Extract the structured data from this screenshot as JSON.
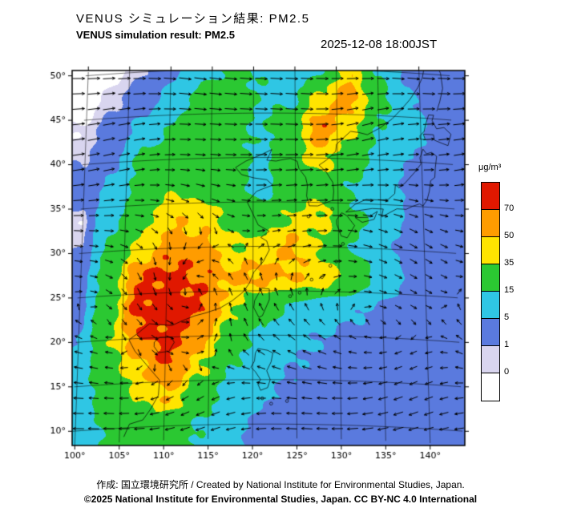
{
  "header": {
    "title_jp": "VENUS シミュレーション結果: PM2.5",
    "title_en": "VENUS simulation result: PM2.5",
    "timestamp": "2025-12-08 18:00JST"
  },
  "legend": {
    "unit": "μg/m³"
  },
  "footer": {
    "credit": "作成: 国立環境研究所 / Created by National Institute for Environmental Studies, Japan.",
    "copyright": "©2025 National Institute for Environmental Studies, Japan. CC BY-NC 4.0 International"
  },
  "chart_data": {
    "type": "heatmap",
    "title": "VENUS simulation result: PM2.5",
    "unit": "μg/m³",
    "lon_tick_labels": [
      "100°",
      "105°",
      "110°",
      "115°",
      "120°",
      "125°",
      "130°",
      "135°",
      "140°"
    ],
    "lat_tick_labels": [
      "50°",
      "45°",
      "40°",
      "35°",
      "30°",
      "25°",
      "20°",
      "15°",
      "10°"
    ],
    "lon_range": [
      99.7,
      143.9
    ],
    "lat_range": [
      8.4,
      50.6
    ],
    "levels": [
      0,
      1,
      5,
      15,
      35,
      50,
      70
    ],
    "level_colors": [
      "#ffffff",
      "#d9d5ef",
      "#5a7ade",
      "#2fc6e4",
      "#2bc832",
      "#ffe400",
      "#ff9c00",
      "#e01800"
    ],
    "grid_lons": [
      100,
      103.5,
      107,
      110.5,
      114,
      117.5,
      121,
      124.5,
      128,
      131.5,
      135,
      138.5,
      142
    ],
    "grid_lats": [
      50,
      46.67,
      43.33,
      40,
      36.67,
      33.33,
      30,
      26.67,
      23.33,
      20,
      16.67,
      13.33,
      10
    ],
    "pm25_values": [
      [
        0.2,
        0.3,
        1,
        4,
        10,
        18,
        14,
        8,
        12,
        45,
        15,
        4,
        2
      ],
      [
        0.3,
        0.8,
        3,
        8,
        20,
        22,
        14,
        12,
        40,
        60,
        20,
        6,
        3
      ],
      [
        0.5,
        2,
        8,
        18,
        24,
        18,
        14,
        22,
        65,
        38,
        14,
        8,
        4
      ],
      [
        1,
        4,
        18,
        22,
        26,
        20,
        12,
        28,
        42,
        22,
        10,
        5,
        3
      ],
      [
        1.5,
        8,
        22,
        32,
        28,
        22,
        10,
        26,
        28,
        14,
        9,
        4,
        3
      ],
      [
        0.5,
        12,
        28,
        48,
        42,
        30,
        22,
        36,
        40,
        18,
        12,
        4,
        2
      ],
      [
        1,
        18,
        42,
        62,
        58,
        36,
        40,
        52,
        32,
        14,
        6,
        3,
        2
      ],
      [
        2,
        24,
        72,
        78,
        66,
        52,
        55,
        50,
        45,
        28,
        10,
        4,
        2
      ],
      [
        3,
        28,
        78,
        85,
        72,
        40,
        22,
        14,
        8,
        6,
        4,
        3,
        2
      ],
      [
        5,
        32,
        68,
        78,
        58,
        26,
        12,
        7,
        5,
        4,
        3,
        2,
        2
      ],
      [
        8,
        26,
        48,
        70,
        38,
        16,
        8,
        5,
        4,
        3,
        2,
        2,
        2
      ],
      [
        7,
        22,
        36,
        48,
        24,
        10,
        6,
        4,
        3,
        2,
        2,
        2,
        2
      ],
      [
        6,
        16,
        24,
        26,
        14,
        6,
        4,
        3,
        2,
        2,
        2,
        2,
        2
      ]
    ],
    "wind_field": {
      "zonal_factor": 0.75,
      "ref_lat": 24,
      "wave_u": [
        2.2,
        0.22,
        0.13
      ],
      "wave_v": [
        1.8,
        0.27,
        1.2,
        0.3
      ],
      "vortices": [
        {
          "lon": 112,
          "lat": 24,
          "strength": 12,
          "r2": 60
        },
        {
          "lon": 130,
          "lat": 44,
          "strength": 10,
          "r2": 45
        }
      ],
      "arrow_spacing_px": 19
    },
    "coastlines": [
      [
        [
          105.5,
          9.0
        ],
        [
          106.1,
          10.4
        ],
        [
          107.6,
          10.8
        ],
        [
          108.4,
          11.9
        ],
        [
          109.3,
          13.5
        ],
        [
          109.4,
          15.2
        ],
        [
          108.2,
          16.6
        ],
        [
          106.5,
          18.6
        ],
        [
          105.8,
          19.9
        ],
        [
          106.8,
          20.6
        ],
        [
          108.1,
          21.6
        ],
        [
          109.7,
          21.4
        ],
        [
          110.7,
          21.3
        ],
        [
          111.9,
          21.8
        ],
        [
          113.3,
          22.3
        ],
        [
          114.6,
          22.6
        ],
        [
          116.2,
          23.1
        ],
        [
          117.6,
          23.9
        ],
        [
          118.9,
          24.9
        ],
        [
          119.6,
          25.9
        ],
        [
          120.1,
          27.1
        ],
        [
          121.2,
          28.3
        ],
        [
          121.9,
          29.6
        ],
        [
          121.6,
          30.6
        ],
        [
          120.9,
          31.0
        ],
        [
          121.9,
          31.7
        ],
        [
          120.6,
          32.4
        ],
        [
          119.9,
          33.8
        ],
        [
          119.3,
          35.0
        ],
        [
          120.4,
          36.2
        ],
        [
          122.3,
          36.9
        ],
        [
          121.6,
          37.5
        ],
        [
          120.1,
          37.7
        ],
        [
          118.6,
          38.1
        ],
        [
          117.9,
          38.9
        ],
        [
          119.1,
          39.6
        ],
        [
          120.9,
          40.3
        ],
        [
          122.2,
          40.9
        ],
        [
          121.6,
          39.7
        ],
        [
          122.7,
          39.6
        ],
        [
          123.7,
          39.8
        ],
        [
          124.4,
          39.9
        ],
        [
          125.2,
          39.6
        ],
        [
          125.4,
          38.8
        ],
        [
          126.2,
          37.8
        ],
        [
          126.4,
          36.9
        ],
        [
          126.3,
          35.7
        ],
        [
          126.6,
          34.6
        ],
        [
          127.6,
          34.6
        ],
        [
          128.6,
          35.0
        ],
        [
          129.4,
          35.3
        ],
        [
          129.5,
          36.3
        ],
        [
          129.4,
          37.3
        ],
        [
          128.6,
          38.5
        ],
        [
          127.8,
          39.2
        ],
        [
          128.7,
          39.8
        ],
        [
          129.8,
          40.8
        ],
        [
          129.9,
          41.6
        ],
        [
          130.7,
          42.3
        ],
        [
          131.6,
          43.1
        ],
        [
          132.6,
          43.0
        ],
        [
          133.6,
          42.8
        ],
        [
          135.1,
          43.6
        ],
        [
          136.6,
          44.7
        ],
        [
          137.8,
          45.9
        ],
        [
          138.8,
          47.0
        ],
        [
          139.8,
          48.4
        ],
        [
          140.4,
          49.6
        ],
        [
          140.7,
          51.0
        ]
      ],
      [
        [
          129.8,
          32.6
        ],
        [
          130.3,
          31.3
        ],
        [
          131.0,
          31.1
        ],
        [
          131.9,
          32.5
        ],
        [
          131.0,
          33.6
        ],
        [
          130.4,
          33.9
        ],
        [
          129.8,
          33.1
        ],
        [
          129.8,
          32.6
        ]
      ],
      [
        [
          132.0,
          33.4
        ],
        [
          133.5,
          33.5
        ],
        [
          134.6,
          34.2
        ],
        [
          134.2,
          33.3
        ],
        [
          132.8,
          32.9
        ],
        [
          132.0,
          33.4
        ]
      ],
      [
        [
          130.9,
          34.0
        ],
        [
          132.3,
          34.2
        ],
        [
          134.0,
          34.5
        ],
        [
          135.3,
          34.5
        ],
        [
          135.1,
          33.6
        ],
        [
          136.0,
          34.1
        ],
        [
          136.9,
          34.6
        ],
        [
          138.0,
          34.6
        ],
        [
          138.8,
          35.0
        ],
        [
          139.6,
          35.3
        ],
        [
          140.0,
          35.1
        ],
        [
          140.5,
          35.8
        ],
        [
          140.8,
          36.8
        ],
        [
          141.0,
          38.0
        ],
        [
          141.5,
          38.4
        ],
        [
          141.6,
          39.5
        ],
        [
          141.8,
          40.8
        ],
        [
          141.2,
          41.2
        ],
        [
          140.6,
          41.0
        ],
        [
          140.2,
          41.5
        ],
        [
          139.8,
          40.5
        ],
        [
          139.9,
          39.8
        ],
        [
          139.1,
          38.8
        ],
        [
          137.9,
          37.5
        ],
        [
          137.2,
          37.0
        ],
        [
          136.8,
          37.3
        ],
        [
          136.7,
          36.3
        ],
        [
          135.9,
          35.6
        ],
        [
          135.0,
          35.5
        ],
        [
          133.3,
          35.5
        ],
        [
          132.0,
          34.9
        ],
        [
          130.9,
          34.0
        ]
      ],
      [
        [
          139.9,
          42.6
        ],
        [
          140.5,
          42.6
        ],
        [
          140.3,
          43.2
        ],
        [
          141.5,
          43.2
        ],
        [
          141.6,
          42.6
        ],
        [
          142.5,
          42.3
        ],
        [
          143.2,
          42.1
        ],
        [
          143.6,
          43.4
        ],
        [
          142.8,
          44.1
        ],
        [
          141.9,
          43.9
        ],
        [
          141.4,
          44.8
        ],
        [
          141.6,
          45.4
        ],
        [
          141.0,
          45.4
        ],
        [
          140.6,
          44.3
        ],
        [
          140.4,
          43.5
        ],
        [
          139.9,
          43.0
        ],
        [
          139.9,
          42.6
        ]
      ],
      [
        [
          142.0,
          45.9
        ],
        [
          142.4,
          47.0
        ],
        [
          142.8,
          48.5
        ],
        [
          142.6,
          50.2
        ],
        [
          142.2,
          51.0
        ]
      ],
      [
        [
          120.1,
          23.1
        ],
        [
          120.7,
          22.0
        ],
        [
          121.1,
          22.2
        ],
        [
          121.9,
          24.0
        ],
        [
          121.9,
          25.2
        ],
        [
          121.0,
          25.3
        ],
        [
          120.2,
          23.9
        ],
        [
          120.1,
          23.1
        ]
      ],
      [
        [
          108.7,
          19.5
        ],
        [
          109.3,
          20.0
        ],
        [
          110.6,
          20.0
        ],
        [
          111.0,
          19.4
        ],
        [
          110.4,
          18.4
        ],
        [
          109.2,
          18.3
        ],
        [
          108.7,
          19.0
        ],
        [
          108.7,
          19.5
        ]
      ],
      [
        [
          120.6,
          18.5
        ],
        [
          121.7,
          18.3
        ],
        [
          122.3,
          18.0
        ],
        [
          122.1,
          17.0
        ],
        [
          121.6,
          16.0
        ],
        [
          122.0,
          15.0
        ],
        [
          121.7,
          14.1
        ],
        [
          120.9,
          13.8
        ],
        [
          120.6,
          14.5
        ],
        [
          120.9,
          15.0
        ],
        [
          120.3,
          15.9
        ],
        [
          119.8,
          16.4
        ],
        [
          120.2,
          17.1
        ],
        [
          120.3,
          18.0
        ],
        [
          120.6,
          18.5
        ]
      ]
    ],
    "island_dots": [
      [
        124.3,
        24.4
      ],
      [
        125.4,
        24.8
      ],
      [
        126.8,
        26.3
      ],
      [
        128.0,
        26.6
      ],
      [
        129.0,
        27.9
      ],
      [
        129.7,
        28.4
      ],
      [
        130.5,
        30.4
      ],
      [
        126.5,
        33.4
      ],
      [
        129.3,
        34.3
      ],
      [
        121.1,
        12.9
      ],
      [
        122.1,
        12.3
      ],
      [
        123.9,
        12.6
      ]
    ]
  }
}
